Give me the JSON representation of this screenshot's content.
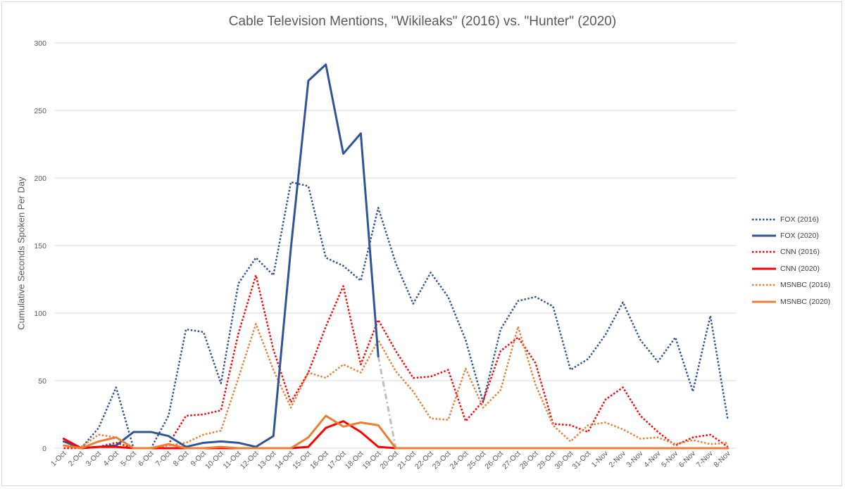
{
  "chart_data": {
    "type": "line",
    "title": "Cable Television Mentions, \"Wikileaks\" (2016) vs. \"Hunter\" (2020)",
    "ylabel": "Cumulative Seconds Spoken Per Day",
    "xlabel": "",
    "ylim": [
      0,
      300
    ],
    "yticks": [
      0,
      50,
      100,
      150,
      200,
      250,
      300
    ],
    "grid": "horizontal",
    "legend_position": "right",
    "categories": [
      "1-Oct",
      "2-Oct",
      "3-Oct",
      "4-Oct",
      "5-Oct",
      "6-Oct",
      "7-Oct",
      "8-Oct",
      "9-Oct",
      "10-Oct",
      "11-Oct",
      "12-Oct",
      "13-Oct",
      "14-Oct",
      "15-Oct",
      "16-Oct",
      "17-Oct",
      "18-Oct",
      "19-Oct",
      "20-Oct",
      "21-Oct",
      "22-Oct",
      "23-Oct",
      "24-Oct",
      "25-Oct",
      "26-Oct",
      "27-Oct",
      "28-Oct",
      "29-Oct",
      "30-Oct",
      "31-Oct",
      "1-Nov",
      "2-Nov",
      "3-Nov",
      "4-Nov",
      "5-Nov",
      "6-Nov",
      "7-Nov",
      "8-Nov"
    ],
    "series": [
      {
        "name": "FOX (2016)",
        "color": "#2f5597",
        "dash": "dotted",
        "values": [
          2,
          0,
          15,
          45,
          0,
          0,
          24,
          88,
          86,
          48,
          122,
          141,
          128,
          197,
          194,
          141,
          135,
          124,
          178,
          137,
          107,
          130,
          112,
          80,
          34,
          88,
          109,
          112,
          105,
          58,
          66,
          84,
          108,
          80,
          64,
          82,
          42,
          98,
          21
        ]
      },
      {
        "name": "FOX (2020)",
        "color": "#2f5597",
        "dash": "solid",
        "values": [
          5,
          0,
          1,
          2,
          12,
          12,
          9,
          1,
          4,
          5,
          4,
          1,
          9,
          148,
          272,
          284,
          218,
          233,
          68,
          null,
          null,
          null,
          null,
          null,
          null,
          null,
          null,
          null,
          null,
          null,
          null,
          null,
          null,
          null,
          null,
          null,
          null,
          null,
          null
        ]
      },
      {
        "name": "CNN (2016)",
        "color": "#ff0000",
        "dash": "dotted",
        "values": [
          0,
          0,
          1,
          4,
          0,
          0,
          3,
          24,
          25,
          28,
          85,
          128,
          73,
          34,
          56,
          90,
          120,
          62,
          95,
          72,
          52,
          53,
          58,
          20,
          35,
          72,
          82,
          63,
          18,
          17,
          12,
          36,
          45,
          24,
          12,
          2,
          8,
          10,
          1
        ]
      },
      {
        "name": "CNN (2020)",
        "color": "#ff0000",
        "dash": "solid",
        "values": [
          7,
          0,
          1,
          1,
          0,
          0,
          0,
          0,
          0,
          0,
          0,
          0,
          0,
          0,
          1,
          15,
          20,
          12,
          1,
          0,
          0,
          0,
          0,
          0,
          0,
          0,
          0,
          0,
          0,
          0,
          0,
          0,
          0,
          0,
          0,
          0,
          0,
          0,
          0
        ]
      },
      {
        "name": "MSNBC (2016)",
        "color": "#ed7d31",
        "dash": "dotted",
        "values": [
          2,
          1,
          10,
          8,
          0,
          0,
          2,
          4,
          10,
          13,
          52,
          92,
          58,
          30,
          56,
          52,
          62,
          56,
          80,
          57,
          42,
          22,
          21,
          59,
          30,
          43,
          90,
          47,
          17,
          5,
          17,
          19,
          14,
          7,
          8,
          3,
          6,
          3,
          4
        ]
      },
      {
        "name": "MSNBC (2020)",
        "color": "#ed7d31",
        "dash": "solid",
        "values": [
          2,
          0,
          5,
          8,
          0,
          0,
          3,
          0,
          0,
          1,
          0,
          0,
          0,
          0,
          8,
          24,
          16,
          19,
          17,
          0,
          0,
          0,
          0,
          0,
          0,
          0,
          0,
          0,
          0,
          0,
          0,
          0,
          0,
          0,
          0,
          0,
          0,
          0,
          0
        ]
      }
    ],
    "connector": {
      "color": "#bfbfbf",
      "dash": "dash-dot",
      "from_category": "19-Oct",
      "from_value": 68,
      "to_category": "20-Oct",
      "to_value": 0
    }
  }
}
